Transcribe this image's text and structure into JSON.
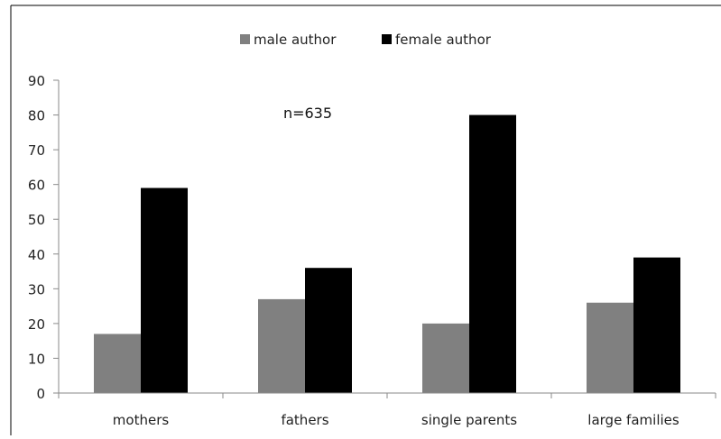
{
  "chart_data": {
    "type": "bar",
    "categories": [
      "mothers",
      "fathers",
      "single parents",
      "large families"
    ],
    "series": [
      {
        "name": "male author",
        "values": [
          17,
          27,
          20,
          26
        ],
        "color": "#808080"
      },
      {
        "name": "female author",
        "values": [
          59,
          36,
          80,
          39
        ],
        "color": "#000000"
      }
    ],
    "annotation": "n=635",
    "ylim": [
      0,
      90
    ],
    "yticks": [
      0,
      10,
      20,
      30,
      40,
      50,
      60,
      70,
      80,
      90
    ],
    "grid": false,
    "legend_position": "top"
  }
}
